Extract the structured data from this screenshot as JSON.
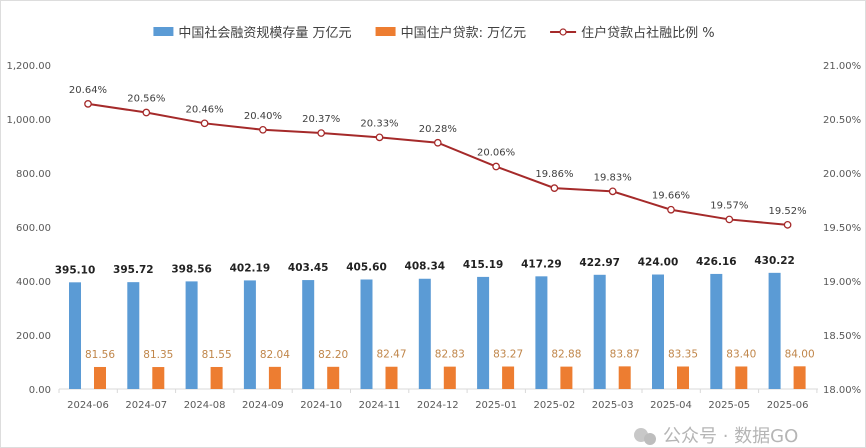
{
  "chart_data": {
    "type": "bar+line",
    "categories": [
      "2024-06",
      "2024-07",
      "2024-08",
      "2024-09",
      "2024-10",
      "2024-11",
      "2024-12",
      "2025-01",
      "2025-02",
      "2025-03",
      "2025-04",
      "2025-05",
      "2025-06"
    ],
    "series": [
      {
        "name": "中国社会融资规模存量 万亿元",
        "type": "bar",
        "axis": "left",
        "color": "#5b9bd5",
        "values": [
          395.1,
          395.72,
          398.56,
          402.19,
          403.45,
          405.6,
          408.34,
          415.19,
          417.29,
          422.97,
          424.0,
          426.16,
          430.22
        ]
      },
      {
        "name": "中国住户贷款: 万亿元",
        "type": "bar",
        "axis": "left",
        "color": "#ed7d31",
        "values": [
          81.56,
          81.35,
          81.55,
          82.04,
          82.2,
          82.47,
          82.83,
          83.27,
          82.88,
          83.87,
          83.35,
          83.4,
          84.0
        ]
      },
      {
        "name": "住户贷款占社融比例 %",
        "type": "line",
        "axis": "right",
        "color": "#a52a2a",
        "values": [
          20.64,
          20.56,
          20.46,
          20.4,
          20.37,
          20.33,
          20.28,
          20.06,
          19.86,
          19.83,
          19.66,
          19.57,
          19.52
        ]
      }
    ],
    "left_axis": {
      "ylim": [
        0,
        1200
      ],
      "ticks": [
        "0.00",
        "200.00",
        "400.00",
        "600.00",
        "800.00",
        "1,000.00",
        "1,200.00"
      ]
    },
    "right_axis": {
      "ylim": [
        18,
        21
      ],
      "ticks": [
        "18.00%",
        "18.50%",
        "19.00%",
        "19.50%",
        "20.00%",
        "20.50%",
        "21.00%"
      ]
    },
    "legend_position": "top",
    "grid": false
  },
  "watermark": "公众号 · 数据GO"
}
